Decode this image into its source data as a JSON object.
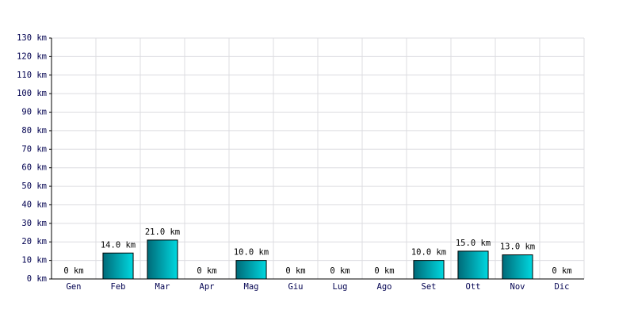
{
  "chart_data": {
    "type": "bar",
    "categories": [
      "Gen",
      "Feb",
      "Mar",
      "Apr",
      "Mag",
      "Giu",
      "Lug",
      "Ago",
      "Set",
      "Ott",
      "Nov",
      "Dic"
    ],
    "values": [
      0,
      14,
      21,
      0,
      10,
      0,
      0,
      0,
      10,
      15,
      13,
      0
    ],
    "value_labels": [
      "0 km",
      "14.0 km",
      "21.0 km",
      "0 km",
      "10.0 km",
      "0 km",
      "0 km",
      "0 km",
      "10.0 km",
      "15.0 km",
      "13.0 km",
      "0 km"
    ],
    "color": "#00d8e0",
    "ylim": [
      0,
      130
    ],
    "yticks": [
      {
        "value": 0,
        "label": "0 km"
      },
      {
        "value": 10,
        "label": "10 km"
      },
      {
        "value": 20,
        "label": "20 km"
      },
      {
        "value": 30,
        "label": "30 km"
      },
      {
        "value": 40,
        "label": "40 km"
      },
      {
        "value": 50,
        "label": "50 km"
      },
      {
        "value": 60,
        "label": "60 km"
      },
      {
        "value": 70,
        "label": "70 km"
      },
      {
        "value": 80,
        "label": "80 km"
      },
      {
        "value": 90,
        "label": "90 km"
      },
      {
        "value": 100,
        "label": "100 km"
      },
      {
        "value": 110,
        "label": "110 km"
      },
      {
        "value": 120,
        "label": "120 km"
      },
      {
        "value": 130,
        "label": "130 km"
      }
    ],
    "grid": true
  }
}
